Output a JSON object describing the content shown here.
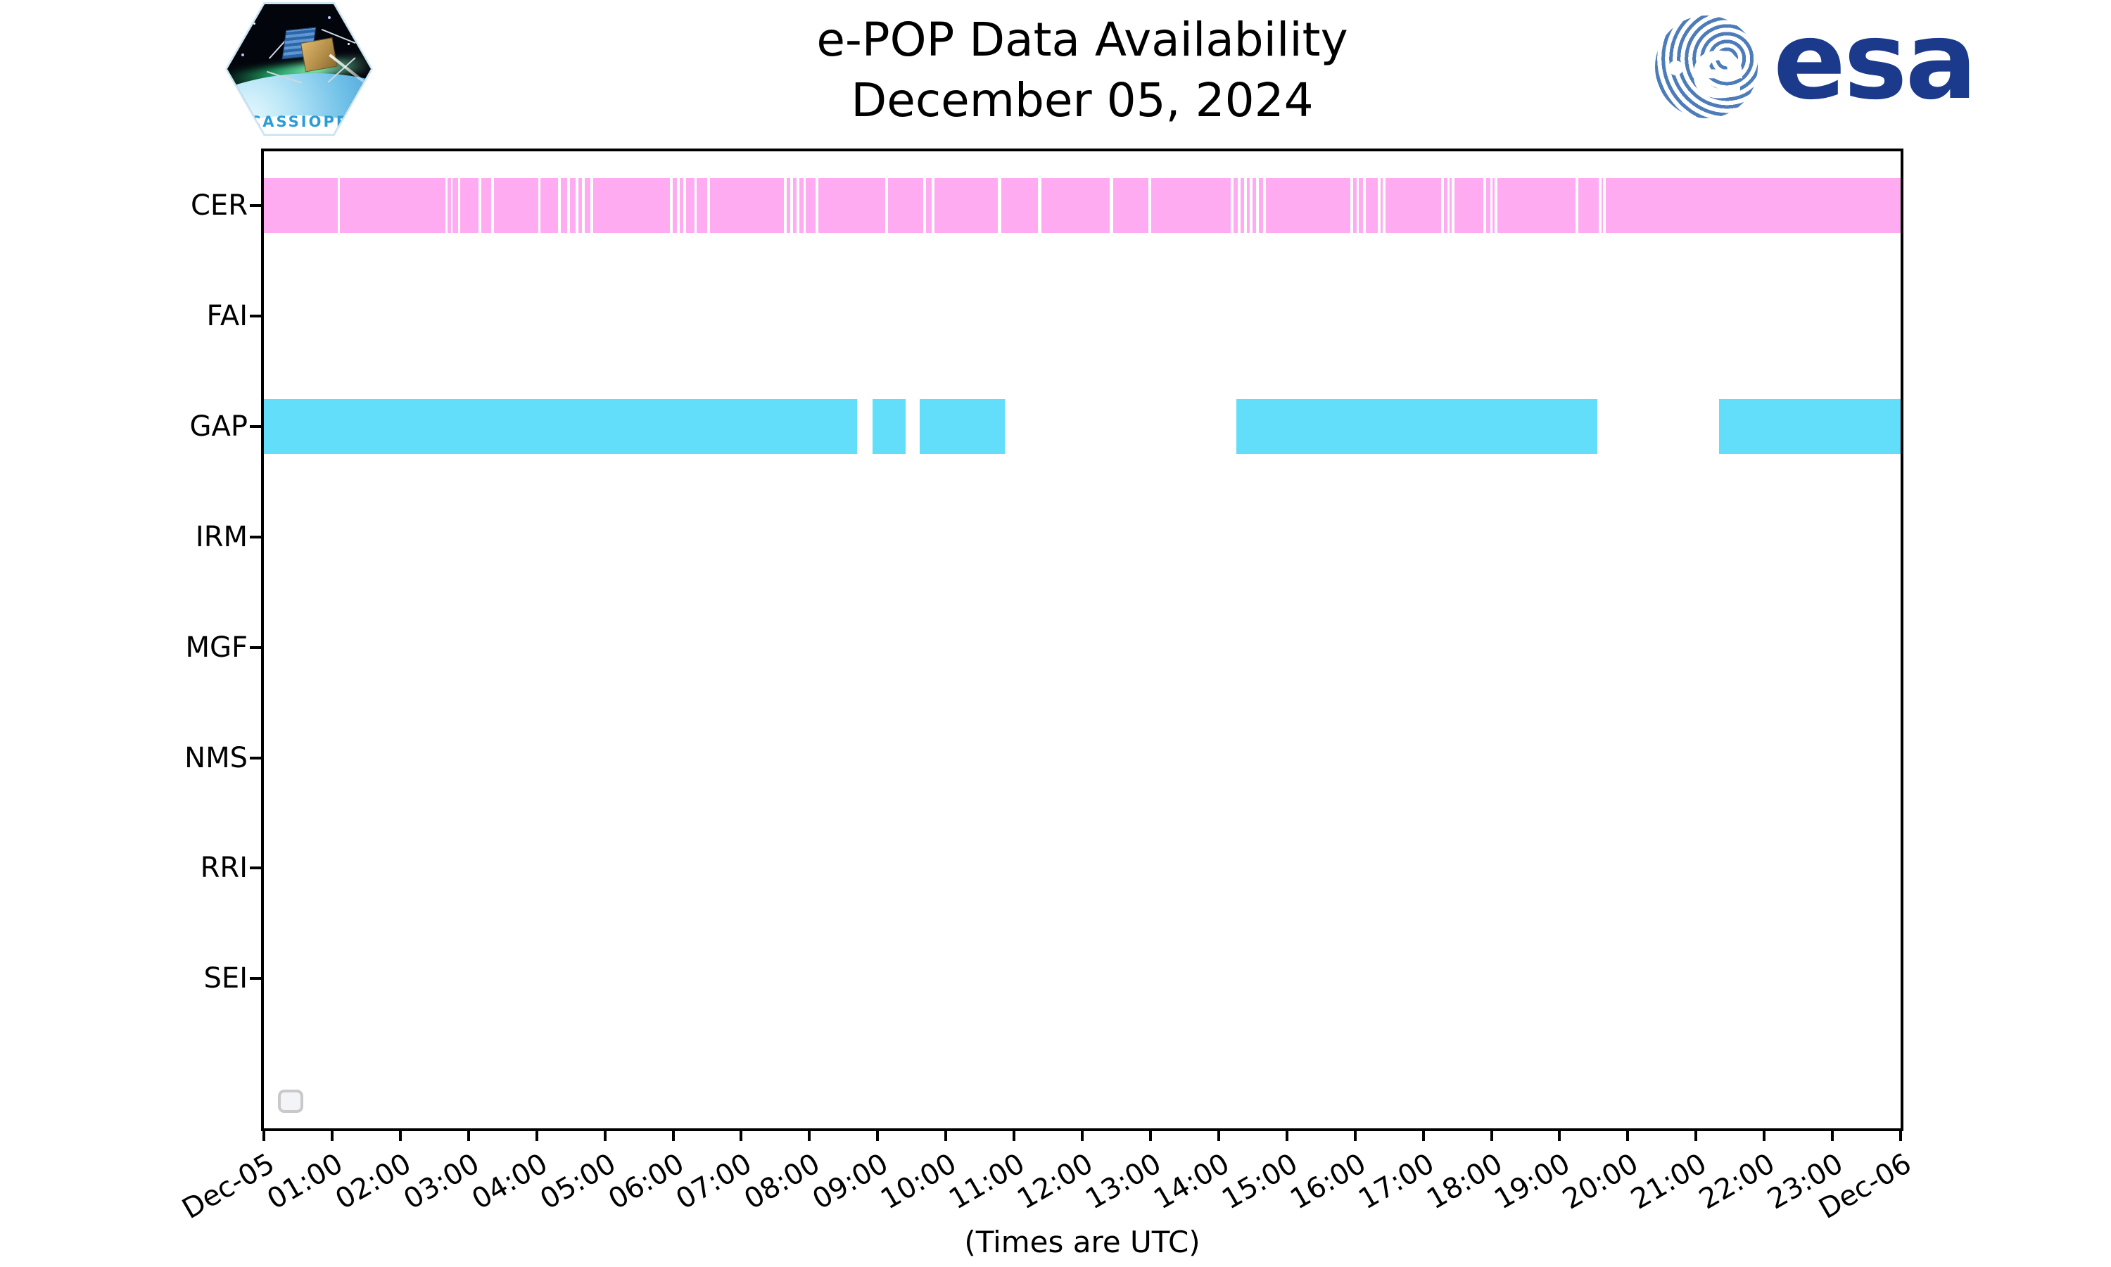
{
  "header": {
    "title_line1": "e-POP Data Availability",
    "title_line2": "December 05, 2024",
    "cassiope_label": "CASSIOPE",
    "esa_word": "esa"
  },
  "footer": {
    "caption": "(Times are UTC)"
  },
  "colors": {
    "cer_bar": "#ffabf2",
    "gap_bar": "#63defa",
    "axis": "#000000",
    "legend_border": "#c9c9c9",
    "esa_navy": "#1b3a8c",
    "esa_stripe_blue": "#4d7cba",
    "cassiope_text_blue": "#2b9cd6"
  },
  "chart_data": {
    "type": "bar",
    "subtype": "horizontal-availability-timeline",
    "title": "e-POP Data Availability",
    "subtitle": "December 05, 2024",
    "xlabel": "(Times are UTC)",
    "ylabel": "",
    "grid": false,
    "x_axis": {
      "start_label": "Dec-05",
      "end_label": "Dec-06",
      "span_hours": 24,
      "tick_interval_hours": 1,
      "tick_labels": [
        "Dec-05",
        "01:00",
        "02:00",
        "03:00",
        "04:00",
        "05:00",
        "06:00",
        "07:00",
        "08:00",
        "09:00",
        "10:00",
        "11:00",
        "12:00",
        "13:00",
        "14:00",
        "15:00",
        "16:00",
        "17:00",
        "18:00",
        "19:00",
        "20:00",
        "21:00",
        "22:00",
        "23:00",
        "Dec-06"
      ],
      "tick_label_rotation_deg": 30
    },
    "legend": {
      "visible": true,
      "position": "lower left",
      "entries": []
    },
    "rows": [
      {
        "label": "CER",
        "color": "#ffabf2",
        "segments_hours": [
          [
            0.0,
            1.08
          ],
          [
            1.11,
            2.66
          ],
          [
            2.69,
            2.74
          ],
          [
            2.77,
            2.85
          ],
          [
            2.88,
            3.15
          ],
          [
            3.19,
            3.33
          ],
          [
            3.37,
            4.02
          ],
          [
            4.06,
            4.31
          ],
          [
            4.35,
            4.45
          ],
          [
            4.49,
            4.57
          ],
          [
            4.61,
            4.66
          ],
          [
            4.7,
            4.79
          ],
          [
            4.83,
            5.95
          ],
          [
            5.99,
            6.06
          ],
          [
            6.1,
            6.15
          ],
          [
            6.19,
            6.31
          ],
          [
            6.35,
            6.5
          ],
          [
            6.54,
            7.63
          ],
          [
            7.67,
            7.72
          ],
          [
            7.76,
            7.81
          ],
          [
            7.85,
            7.91
          ],
          [
            7.95,
            8.09
          ],
          [
            8.13,
            9.11
          ],
          [
            9.15,
            9.67
          ],
          [
            9.71,
            9.79
          ],
          [
            9.83,
            10.76
          ],
          [
            10.81,
            11.35
          ],
          [
            11.4,
            12.4
          ],
          [
            12.45,
            12.97
          ],
          [
            13.01,
            14.18
          ],
          [
            14.22,
            14.28
          ],
          [
            14.32,
            14.37
          ],
          [
            14.41,
            14.46
          ],
          [
            14.5,
            14.55
          ],
          [
            14.59,
            14.65
          ],
          [
            14.69,
            15.93
          ],
          [
            15.97,
            16.02
          ],
          [
            16.06,
            16.12
          ],
          [
            16.16,
            16.33
          ],
          [
            16.37,
            16.41
          ],
          [
            16.45,
            17.26
          ],
          [
            17.3,
            17.35
          ],
          [
            17.39,
            17.42
          ],
          [
            17.46,
            17.88
          ],
          [
            17.92,
            17.98
          ],
          [
            18.02,
            18.05
          ],
          [
            18.09,
            19.23
          ],
          [
            19.27,
            19.57
          ],
          [
            19.61,
            19.64
          ],
          [
            19.68,
            24.0
          ]
        ]
      },
      {
        "label": "FAI",
        "color": "#ffabf2",
        "segments_hours": []
      },
      {
        "label": "GAP",
        "color": "#63defa",
        "segments_hours": [
          [
            0.0,
            8.7
          ],
          [
            8.93,
            9.41
          ],
          [
            9.62,
            10.87
          ],
          [
            14.26,
            19.55
          ],
          [
            21.34,
            24.0
          ]
        ]
      },
      {
        "label": "IRM",
        "color": "#63defa",
        "segments_hours": []
      },
      {
        "label": "MGF",
        "color": "#ffabf2",
        "segments_hours": []
      },
      {
        "label": "NMS",
        "color": "#ffabf2",
        "segments_hours": []
      },
      {
        "label": "RRI",
        "color": "#63defa",
        "segments_hours": []
      },
      {
        "label": "SEI",
        "color": "#ffabf2",
        "segments_hours": []
      }
    ]
  }
}
